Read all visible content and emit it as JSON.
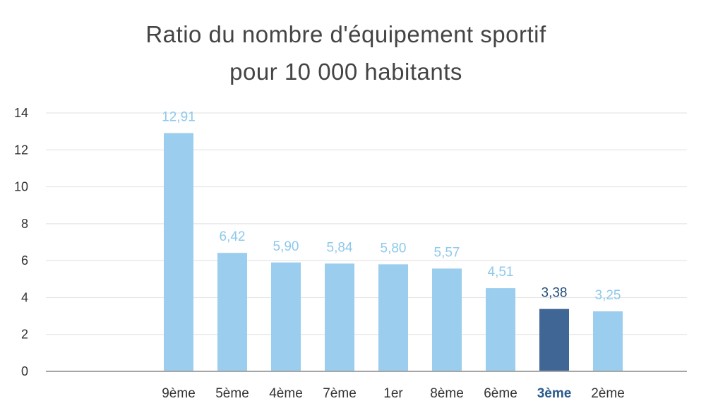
{
  "chart_data": {
    "type": "bar",
    "title_lines": [
      "Ratio du nombre d'équipement sportif",
      "pour 10 000 habitants"
    ],
    "categories": [
      "9ème",
      "5ème",
      "4ème",
      "7ème",
      "1er",
      "8ème",
      "6ème",
      "3ème",
      "2ème"
    ],
    "values": [
      12.91,
      6.42,
      5.9,
      5.84,
      5.8,
      5.57,
      4.51,
      3.38,
      3.25
    ],
    "data_labels": [
      "12,91",
      "6,42",
      "5,90",
      "5,84",
      "5,80",
      "5,57",
      "4,51",
      "3,38",
      "3,25"
    ],
    "highlight_category": "3ème",
    "ylim": [
      0,
      14
    ],
    "yticks": [
      0,
      2,
      4,
      6,
      8,
      10,
      12,
      14
    ],
    "grid": true,
    "legend": "none",
    "colors": {
      "bar": "#9bcdee",
      "highlight": "#3f6694",
      "label": "#8ec9ec",
      "highlight_label": "#1f4e79"
    }
  }
}
